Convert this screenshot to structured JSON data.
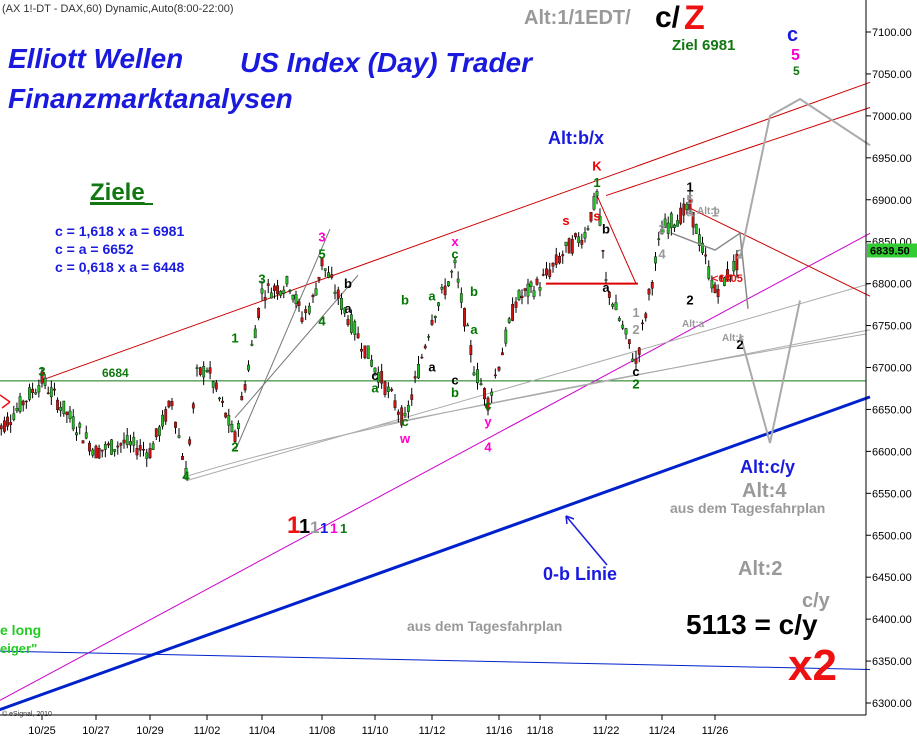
{
  "header": {
    "symbol_line": "(AX 1!-DT - DAX,60) Dynamic,Auto(8:00-22:00)",
    "copyright": "© eSignal, 2010"
  },
  "titles": {
    "line1": "Elliott Wellen",
    "line2": "US Index (Day) Trader",
    "line3": "Finanzmarktanalysen",
    "alt_top_prefix": "Alt:1/1EDT/",
    "alt_top_cz_c": "c/",
    "alt_top_cz_z": "Z",
    "ziel": "Ziel 6981"
  },
  "targets": {
    "heading": "Ziele",
    "lines": [
      "c = 1,618 x a = 6981",
      "c = a = 6652",
      "c = 0,618 x a = 6448"
    ]
  },
  "annotations": {
    "altbx": "Alt:b/x",
    "altcy": "Alt:c/y",
    "alt4": "Alt:4",
    "alt2": "Alt:2",
    "tagesfahrplan_right": "aus dem Tagesfahrplan",
    "tagesfahrplan_center": "aus dem Tagesfahrplan",
    "ob_linie": "0-b Linie",
    "cy_small": "c/y",
    "big_target": "5113 = c/y",
    "x2": "x2",
    "level_6684": "6684",
    "lt6805": "<6805",
    "alt_b": "Alt:b",
    "alt_a": "Alt:a",
    "alt_c": "Alt:c",
    "left_long": "e long",
    "left_zeiger": "eiger\"",
    "degree_1": "1",
    "degree_rest": [
      "1",
      "1",
      "1",
      "1",
      "1"
    ],
    "top_c": "c",
    "top_5a": "5",
    "top_5b": "5"
  },
  "wave_labels": [
    {
      "t": "3",
      "c": "#007700",
      "x": "10/25",
      "y": 6690
    },
    {
      "t": "4",
      "c": "#007700",
      "x": "10/31",
      "y": 6565
    },
    {
      "t": "1",
      "c": "#007700",
      "x": "11/03",
      "y": 6730
    },
    {
      "t": "2",
      "c": "#007700",
      "x": "11/03",
      "y": 6600
    },
    {
      "t": "3",
      "c": "#007700",
      "x": "11/04",
      "y": 6800
    },
    {
      "t": "3",
      "c": "#ff00cc",
      "x": "11/08",
      "y": 6850
    },
    {
      "t": "5",
      "c": "#007700",
      "x": "11/08",
      "y": 6830
    },
    {
      "t": "4",
      "c": "#007700",
      "x": "11/08",
      "y": 6750
    },
    {
      "t": "a",
      "c": "#000000",
      "x": "11/09",
      "y": 6765
    },
    {
      "t": "b",
      "c": "#000000",
      "x": "11/09",
      "y": 6795
    },
    {
      "t": "c",
      "c": "#000000",
      "x": "11/10",
      "y": 6685
    },
    {
      "t": "a",
      "c": "#007700",
      "x": "11/10",
      "y": 6670
    },
    {
      "t": "b",
      "c": "#007700",
      "x": "11/11",
      "y": 6775
    },
    {
      "t": "a",
      "c": "#007700",
      "x": "11/12",
      "y": 6780
    },
    {
      "t": "c",
      "c": "#007700",
      "x": "11/11",
      "y": 6630
    },
    {
      "t": "w",
      "c": "#ff00cc",
      "x": "11/11",
      "y": 6610
    },
    {
      "t": "a",
      "c": "#000000",
      "x": "11/12",
      "y": 6695
    },
    {
      "t": "c",
      "c": "#000000",
      "x": "11/13",
      "y": 6680
    },
    {
      "t": "b",
      "c": "#007700",
      "x": "11/13",
      "y": 6665
    },
    {
      "t": "x",
      "c": "#ff00cc",
      "x": "11/13",
      "y": 6845
    },
    {
      "t": "c",
      "c": "#007700",
      "x": "11/13",
      "y": 6830
    },
    {
      "t": "b",
      "c": "#007700",
      "x": "11/14",
      "y": 6785
    },
    {
      "t": "a",
      "c": "#007700",
      "x": "11/14",
      "y": 6740
    },
    {
      "t": "c",
      "c": "#007700",
      "x": "11/15",
      "y": 6650
    },
    {
      "t": "y",
      "c": "#ff00cc",
      "x": "11/15",
      "y": 6630
    },
    {
      "t": "4",
      "c": "#ff00cc",
      "x": "11/15",
      "y": 6600
    },
    {
      "t": "K",
      "c": "#ee0000",
      "x": "11/21",
      "y": 6935
    },
    {
      "t": "1",
      "c": "#007700",
      "x": "11/21",
      "y": 6915
    },
    {
      "t": "s",
      "c": "#ee0000",
      "x": "11/19",
      "y": 6870
    },
    {
      "t": "s",
      "c": "#ee0000",
      "x": "11/21",
      "y": 6875
    },
    {
      "t": "b",
      "c": "#000000",
      "x": "11/22",
      "y": 6860
    },
    {
      "t": "a",
      "c": "#000000",
      "x": "11/22",
      "y": 6790
    },
    {
      "t": "c",
      "c": "#000000",
      "x": "11/23",
      "y": 6690
    },
    {
      "t": "2",
      "c": "#007700",
      "x": "11/23",
      "y": 6675
    },
    {
      "t": "1",
      "c": "#999999",
      "x": "11/23",
      "y": 6760
    },
    {
      "t": "2",
      "c": "#999999",
      "x": "11/23",
      "y": 6740
    },
    {
      "t": "3",
      "c": "#999999",
      "x": "11/24",
      "y": 6860
    },
    {
      "t": "4",
      "c": "#999999",
      "x": "11/24",
      "y": 6830
    },
    {
      "t": "1",
      "c": "#000000",
      "x": "11/25",
      "y": 6910
    },
    {
      "t": "5",
      "c": "#999999",
      "x": "11/25",
      "y": 6895
    },
    {
      "t": "a",
      "c": "#999999",
      "x": "11/25",
      "y": 6880
    },
    {
      "t": "1",
      "c": "#999999",
      "x": "11/26",
      "y": 6880
    },
    {
      "t": "2",
      "c": "#999999",
      "x": "11/27",
      "y": 6830
    },
    {
      "t": "2",
      "c": "#000000",
      "x": "11/25",
      "y": 6775
    },
    {
      "t": "2",
      "c": "#000000",
      "x": "11/27",
      "y": 6722
    }
  ],
  "chart_data": {
    "type": "candlestick",
    "x_ticks": [
      "10/25",
      "10/27",
      "10/29",
      "11/02",
      "11/04",
      "11/08",
      "11/10",
      "11/12",
      "11/16",
      "11/18",
      "11/22",
      "11/24",
      "11/26"
    ],
    "y_ticks": [
      6300,
      6350,
      6400,
      6450,
      6500,
      6550,
      6600,
      6650,
      6700,
      6750,
      6800,
      6850,
      6900,
      6950,
      7000,
      7050,
      7100
    ],
    "ylim": [
      6290,
      7130
    ],
    "last_price": "6839.50",
    "price_path": [
      [
        "10/24",
        6620
      ],
      [
        "10/25",
        6685
      ],
      [
        "10/26",
        6640
      ],
      [
        "10/27",
        6600
      ],
      [
        "10/28",
        6610
      ],
      [
        "10/29",
        6600
      ],
      [
        "10/30",
        6660
      ],
      [
        "10/31",
        6575
      ],
      [
        "11/01",
        6690
      ],
      [
        "11/02",
        6700
      ],
      [
        "11/03",
        6615
      ],
      [
        "11/04",
        6790
      ],
      [
        "11/05",
        6800
      ],
      [
        "11/06",
        6760
      ],
      [
        "11/07",
        6780
      ],
      [
        "11/08",
        6825
      ],
      [
        "11/09",
        6760
      ],
      [
        "11/10",
        6700
      ],
      [
        "11/11",
        6635
      ],
      [
        "11/12",
        6760
      ],
      [
        "11/13",
        6820
      ],
      [
        "11/14",
        6700
      ],
      [
        "11/15",
        6660
      ],
      [
        "11/16",
        6705
      ],
      [
        "11/17",
        6780
      ],
      [
        "11/18",
        6800
      ],
      [
        "11/19",
        6840
      ],
      [
        "11/20",
        6860
      ],
      [
        "11/21",
        6905
      ],
      [
        "11/22",
        6800
      ],
      [
        "11/23",
        6705
      ],
      [
        "11/24",
        6865
      ],
      [
        "11/25",
        6890
      ],
      [
        "11/26",
        6790
      ],
      [
        "11/27",
        6830
      ]
    ],
    "level_line": 6684,
    "level_line_red": 6800,
    "trend_lines": [
      {
        "name": "upper channel 1",
        "color": "#cc0000",
        "from": [
          "10/25",
          6685
        ],
        "to": [
          "11/30",
          7040
        ]
      },
      {
        "name": "upper channel 2",
        "color": "#cc0000",
        "from": [
          "11/22",
          6905
        ],
        "to": [
          "11/30",
          7010
        ]
      },
      {
        "name": "magenta trend",
        "color": "#cc00cc",
        "from": [
          "10/24",
          6300
        ],
        "to": [
          "11/30",
          6860
        ]
      },
      {
        "name": "0-b Linie",
        "color": "#0022cc",
        "from": [
          "10/24",
          6290
        ],
        "to": [
          "11/30",
          6665
        ]
      },
      {
        "name": "horizontal blue",
        "color": "#0022cc",
        "from": [
          "10/24",
          6362
        ],
        "to": [
          "11/30",
          6340
        ]
      },
      {
        "name": "gray trend",
        "color": "#aaaaaa",
        "from": [
          "10/31",
          6565
        ],
        "to": [
          "11/30",
          6800
        ]
      },
      {
        "name": "gray trend 2",
        "color": "#aaaaaa",
        "from": [
          "11/10",
          6630
        ],
        "to": [
          "11/30",
          6745
        ]
      },
      {
        "name": "red down",
        "color": "#cc0000",
        "from": [
          "11/25",
          6890
        ],
        "to": [
          "11/30",
          6785
        ]
      },
      {
        "name": "red falling wedge",
        "color": "#cc0000",
        "from": [
          "11/21",
          6905
        ],
        "to": [
          "11/23",
          6800
        ]
      }
    ],
    "projection_paths": [
      {
        "color": "#aaaaaa",
        "points": [
          [
            "11/27",
            6830
          ],
          [
            "11/28",
            7000
          ],
          [
            "11/29",
            7020
          ],
          [
            "11/30",
            6965
          ]
        ]
      },
      {
        "color": "#aaaaaa",
        "points": [
          [
            "11/27",
            6740
          ],
          [
            "11/28",
            6610
          ],
          [
            "11/29",
            6780
          ]
        ]
      }
    ]
  }
}
